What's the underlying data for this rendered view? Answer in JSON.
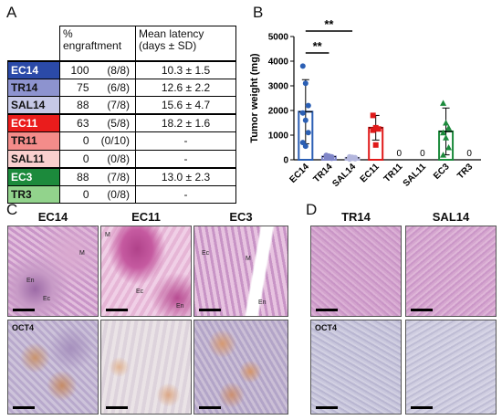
{
  "panels": {
    "a": "A",
    "b": "B",
    "c": "C",
    "d": "D"
  },
  "table": {
    "header_col2": "% engraftment",
    "header_col3": "Mean latency (days ± SD)",
    "rows": [
      {
        "name": "EC14",
        "pct": "100",
        "frac": "(8/8)",
        "latency": "10.3 ± 1.5",
        "bg": "#2b4aa8",
        "fg": "#ffffff"
      },
      {
        "name": "TR14",
        "pct": "75",
        "frac": "(6/8)",
        "latency": "12.6 ± 2.2",
        "bg": "#8d93cf",
        "fg": "#111111"
      },
      {
        "name": "SAL14",
        "pct": "88",
        "frac": "(7/8)",
        "latency": "15.6 ± 4.7",
        "bg": "#c6c8e6",
        "fg": "#111111"
      },
      {
        "name": "EC11",
        "pct": "63",
        "frac": "(5/8)",
        "latency": "18.2 ± 1.6",
        "bg": "#ea1c1c",
        "fg": "#ffffff"
      },
      {
        "name": "TR11",
        "pct": "0",
        "frac": "(0/10)",
        "latency": "-",
        "bg": "#f48c8a",
        "fg": "#111111"
      },
      {
        "name": "SAL11",
        "pct": "0",
        "frac": "(0/8)",
        "latency": "-",
        "bg": "#f9cfce",
        "fg": "#111111"
      },
      {
        "name": "EC3",
        "pct": "88",
        "frac": "(7/8)",
        "latency": "13.0 ± 2.3",
        "bg": "#1c8a3c",
        "fg": "#ffffff"
      },
      {
        "name": "TR3",
        "pct": "0",
        "frac": "(0/8)",
        "latency": "-",
        "bg": "#92d38c",
        "fg": "#111111"
      }
    ]
  },
  "chart_data": {
    "type": "bar",
    "ylabel": "Tumor weight (mg)",
    "ylim": [
      0,
      5000
    ],
    "yticks": [
      "0",
      "1000",
      "2000",
      "3000",
      "4000",
      "5000"
    ],
    "categories": [
      "EC14",
      "TR14",
      "SAL14",
      "EC11",
      "TR11",
      "SAL11",
      "EC3",
      "TR3"
    ],
    "values": [
      1950,
      130,
      80,
      1300,
      0,
      0,
      1150,
      0
    ],
    "sd": [
      1300,
      60,
      40,
      500,
      0,
      0,
      950,
      0
    ],
    "zero_labels": [
      "0",
      "0",
      "0"
    ],
    "colors": [
      "#2b5fb4",
      "#7f86c8",
      "#b3b6dd",
      "#e01a1a",
      "#f48c8a",
      "#f9cfce",
      "#1c8a3c",
      "#92d38c"
    ],
    "points": {
      "EC14": [
        3800,
        3100,
        2200,
        1900,
        1600,
        1100,
        700,
        550
      ],
      "TR14": [
        180,
        150,
        120,
        100,
        90,
        60
      ],
      "SAL14": [
        120,
        100,
        90,
        70,
        60,
        40,
        30
      ],
      "EC11": [
        1800,
        1300,
        1250,
        1200,
        600
      ],
      "EC3": [
        2300,
        1500,
        1300,
        1100,
        900,
        500,
        200
      ]
    },
    "significance": [
      "**",
      "**"
    ]
  },
  "panel_c": {
    "cols": [
      "EC14",
      "EC11",
      "EC3"
    ],
    "stain": "OCT4",
    "labels_ec14": {
      "m": "M",
      "en": "En",
      "ec": "Ec"
    },
    "labels_ec11": {
      "m": "M",
      "ec": "Ec",
      "en": "En"
    },
    "labels_ec3": {
      "ec": "Ec",
      "m": "M",
      "en": "En"
    }
  },
  "panel_d": {
    "cols": [
      "TR14",
      "SAL14"
    ],
    "stain": "OCT4"
  }
}
